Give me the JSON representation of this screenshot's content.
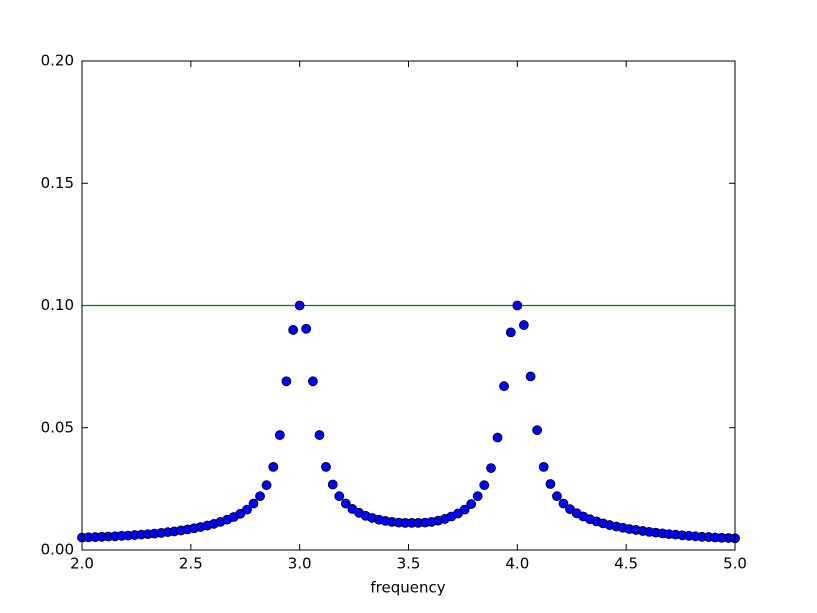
{
  "chart_data": {
    "type": "scatter",
    "xlabel": "frequency",
    "x": [
      2.0,
      2.03,
      2.061,
      2.091,
      2.121,
      2.152,
      2.182,
      2.212,
      2.242,
      2.273,
      2.303,
      2.333,
      2.364,
      2.394,
      2.424,
      2.455,
      2.485,
      2.515,
      2.545,
      2.576,
      2.606,
      2.636,
      2.667,
      2.697,
      2.727,
      2.758,
      2.788,
      2.818,
      2.848,
      2.879,
      2.909,
      2.939,
      2.97,
      3.0,
      3.03,
      3.061,
      3.091,
      3.121,
      3.152,
      3.182,
      3.212,
      3.242,
      3.273,
      3.303,
      3.333,
      3.364,
      3.394,
      3.424,
      3.455,
      3.485,
      3.515,
      3.545,
      3.576,
      3.606,
      3.636,
      3.667,
      3.697,
      3.727,
      3.758,
      3.788,
      3.818,
      3.848,
      3.879,
      3.909,
      3.939,
      3.97,
      4.0,
      4.03,
      4.061,
      4.091,
      4.121,
      4.152,
      4.182,
      4.212,
      4.242,
      4.273,
      4.303,
      4.333,
      4.364,
      4.394,
      4.424,
      4.455,
      4.485,
      4.515,
      4.545,
      4.576,
      4.606,
      4.636,
      4.667,
      4.697,
      4.727,
      4.758,
      4.788,
      4.818,
      4.848,
      4.879,
      4.909,
      4.939,
      4.97,
      5.0
    ],
    "values": [
      0.0051,
      0.0052,
      0.0053,
      0.0054,
      0.0055,
      0.0056,
      0.0058,
      0.0059,
      0.0061,
      0.0063,
      0.0065,
      0.0067,
      0.007,
      0.0073,
      0.0076,
      0.008,
      0.0084,
      0.0089,
      0.0094,
      0.01,
      0.0107,
      0.0115,
      0.0124,
      0.0135,
      0.0148,
      0.0165,
      0.019,
      0.022,
      0.0265,
      0.034,
      0.047,
      0.069,
      0.09,
      0.1,
      0.0905,
      0.069,
      0.047,
      0.034,
      0.0268,
      0.022,
      0.019,
      0.0168,
      0.0152,
      0.014,
      0.0131,
      0.0124,
      0.0119,
      0.0115,
      0.0112,
      0.0111,
      0.0111,
      0.0111,
      0.0112,
      0.0115,
      0.012,
      0.0127,
      0.0137,
      0.0149,
      0.0165,
      0.0188,
      0.022,
      0.0265,
      0.0335,
      0.046,
      0.067,
      0.089,
      0.1,
      0.092,
      0.071,
      0.049,
      0.034,
      0.027,
      0.022,
      0.019,
      0.0167,
      0.015,
      0.0137,
      0.0126,
      0.0117,
      0.0109,
      0.0102,
      0.0096,
      0.0091,
      0.0086,
      0.0082,
      0.0078,
      0.0074,
      0.0071,
      0.0068,
      0.0065,
      0.0063,
      0.006,
      0.0058,
      0.0056,
      0.0054,
      0.0053,
      0.0051,
      0.005,
      0.0049,
      0.0048
    ],
    "color": "#0000ff",
    "hline": {
      "value": 0.1,
      "color": "#008000"
    },
    "xlim": [
      2.0,
      5.0
    ],
    "ylim": [
      0.0,
      0.2
    ],
    "xticks": [
      {
        "value": 2.0,
        "label": "2.0"
      },
      {
        "value": 2.5,
        "label": "2.5"
      },
      {
        "value": 3.0,
        "label": "3.0"
      },
      {
        "value": 3.5,
        "label": "3.5"
      },
      {
        "value": 4.0,
        "label": "4.0"
      },
      {
        "value": 4.5,
        "label": "4.5"
      },
      {
        "value": 5.0,
        "label": "5.0"
      }
    ],
    "yticks": [
      {
        "value": 0.0,
        "label": "0.00"
      },
      {
        "value": 0.05,
        "label": "0.05"
      },
      {
        "value": 0.1,
        "label": "0.10"
      },
      {
        "value": 0.15,
        "label": "0.15"
      },
      {
        "value": 0.2,
        "label": "0.20"
      }
    ],
    "grid": false
  }
}
